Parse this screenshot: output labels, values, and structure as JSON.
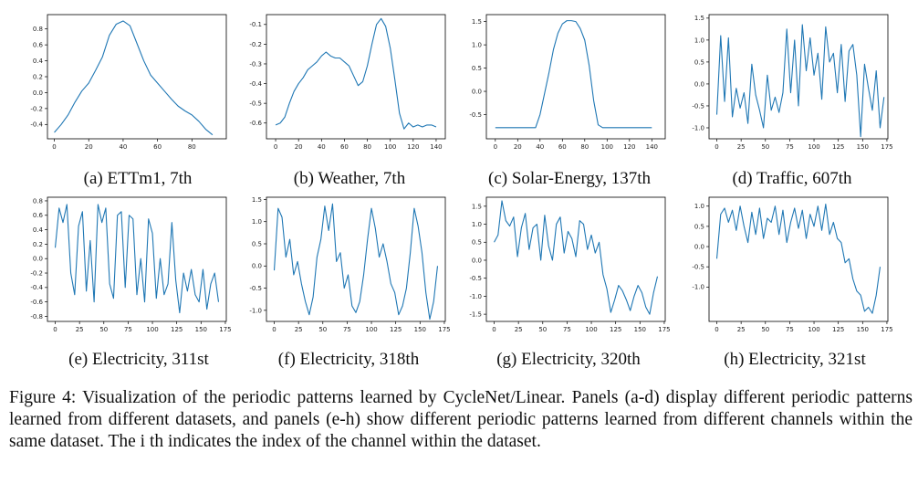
{
  "figure_caption": "Figure 4: Visualization of the periodic patterns learned by CycleNet/Linear. Panels (a-d) display different periodic patterns learned from different datasets, and panels (e-h) show different periodic patterns learned from different channels within the same dataset. The i th indicates the index of the channel within the dataset.",
  "colors": {
    "line": "#1f77b4",
    "axes": "#000000"
  },
  "chart_data": [
    {
      "type": "line",
      "id": "a",
      "caption": "(a) ETTm1, 7th",
      "x_start": 0,
      "x_step": 4,
      "xlim": [
        -4,
        100
      ],
      "ylim": [
        -0.58,
        0.98
      ],
      "xticks": [
        0,
        20,
        40,
        60,
        80
      ],
      "yticks": [
        -0.4,
        -0.2,
        0.0,
        0.2,
        0.4,
        0.6,
        0.8
      ],
      "xtick_labels": [
        "0",
        "20",
        "40",
        "60",
        "80"
      ],
      "ytick_labels": [
        "-0.4",
        "-0.2",
        "0.0",
        "0.2",
        "0.4",
        "0.6",
        "0.8"
      ],
      "series": [
        {
          "values": [
            -0.5,
            -0.4,
            -0.28,
            -0.12,
            0.02,
            0.12,
            0.28,
            0.45,
            0.72,
            0.86,
            0.9,
            0.84,
            0.62,
            0.4,
            0.22,
            0.12,
            0.02,
            -0.08,
            -0.17,
            -0.23,
            -0.28,
            -0.36,
            -0.46,
            -0.53
          ]
        }
      ]
    },
    {
      "type": "line",
      "id": "b",
      "caption": "(b) Weather, 7th",
      "x_start": 0,
      "x_step": 4,
      "xlim": [
        -8,
        148
      ],
      "ylim": [
        -0.68,
        -0.05
      ],
      "xticks": [
        0,
        20,
        40,
        60,
        80,
        100,
        120,
        140
      ],
      "yticks": [
        -0.6,
        -0.5,
        -0.4,
        -0.3,
        -0.2,
        -0.1
      ],
      "xtick_labels": [
        "0",
        "20",
        "40",
        "60",
        "80",
        "100",
        "120",
        "140"
      ],
      "ytick_labels": [
        "-0.6",
        "-0.5",
        "-0.4",
        "-0.3",
        "-0.2",
        "-0.1"
      ],
      "series": [
        {
          "values": [
            -0.61,
            -0.6,
            -0.57,
            -0.5,
            -0.44,
            -0.4,
            -0.37,
            -0.33,
            -0.31,
            -0.29,
            -0.26,
            -0.24,
            -0.26,
            -0.27,
            -0.27,
            -0.29,
            -0.31,
            -0.36,
            -0.41,
            -0.39,
            -0.31,
            -0.2,
            -0.1,
            -0.07,
            -0.11,
            -0.22,
            -0.38,
            -0.55,
            -0.63,
            -0.6,
            -0.62,
            -0.61,
            -0.62,
            -0.61,
            -0.61,
            -0.62
          ]
        }
      ]
    },
    {
      "type": "line",
      "id": "c",
      "caption": "(c) Solar-Energy, 137th",
      "x_start": 0,
      "x_step": 4,
      "xlim": [
        -8,
        152
      ],
      "ylim": [
        -1.02,
        1.65
      ],
      "xticks": [
        0,
        20,
        40,
        60,
        80,
        100,
        120,
        140
      ],
      "yticks": [
        -0.5,
        0.0,
        0.5,
        1.0,
        1.5
      ],
      "xtick_labels": [
        "0",
        "20",
        "40",
        "60",
        "80",
        "100",
        "120",
        "140"
      ],
      "ytick_labels": [
        "-0.5",
        "0.0",
        "0.5",
        "1.0",
        "1.5"
      ],
      "series": [
        {
          "values": [
            -0.78,
            -0.78,
            -0.78,
            -0.78,
            -0.78,
            -0.78,
            -0.78,
            -0.78,
            -0.78,
            -0.78,
            -0.5,
            -0.05,
            0.4,
            0.9,
            1.25,
            1.45,
            1.52,
            1.52,
            1.5,
            1.35,
            1.1,
            0.55,
            -0.2,
            -0.72,
            -0.78,
            -0.78,
            -0.78,
            -0.78,
            -0.78,
            -0.78,
            -0.78,
            -0.78,
            -0.78,
            -0.78,
            -0.78,
            -0.78
          ]
        }
      ]
    },
    {
      "type": "line",
      "id": "d",
      "caption": "(d) Traffic, 607th",
      "x_start": 0,
      "x_step": 4,
      "xlim": [
        -8,
        176
      ],
      "ylim": [
        -1.25,
        1.58
      ],
      "xticks": [
        0,
        25,
        50,
        75,
        100,
        125,
        150,
        175
      ],
      "yticks": [
        -1.0,
        -0.5,
        0.0,
        0.5,
        1.0,
        1.5
      ],
      "xtick_labels": [
        "0",
        "25",
        "50",
        "75",
        "100",
        "125",
        "150",
        "175"
      ],
      "ytick_labels": [
        "-1.0",
        "-0.5",
        "0.0",
        "0.5",
        "1.0",
        "1.5"
      ],
      "series": [
        {
          "values": [
            -0.7,
            1.1,
            -0.4,
            1.05,
            -0.75,
            -0.1,
            -0.55,
            -0.2,
            -0.9,
            0.45,
            -0.25,
            -0.6,
            -1.0,
            0.2,
            -0.6,
            -0.3,
            -0.65,
            -0.2,
            1.25,
            -0.2,
            1.0,
            -0.5,
            1.35,
            0.3,
            1.05,
            0.2,
            0.7,
            -0.35,
            1.3,
            0.5,
            0.7,
            -0.2,
            0.9,
            -0.4,
            0.75,
            0.9,
            0.2,
            -1.2,
            0.45,
            -0.1,
            -0.6,
            0.3,
            -1.0,
            -0.3
          ]
        }
      ]
    },
    {
      "type": "line",
      "id": "e",
      "caption": "(e) Electricity, 311st",
      "x_start": 0,
      "x_step": 4,
      "xlim": [
        -8,
        176
      ],
      "ylim": [
        -0.87,
        0.85
      ],
      "xticks": [
        0,
        25,
        50,
        75,
        100,
        125,
        150,
        175
      ],
      "yticks": [
        -0.8,
        -0.6,
        -0.4,
        -0.2,
        0.0,
        0.2,
        0.4,
        0.6,
        0.8
      ],
      "xtick_labels": [
        "0",
        "25",
        "50",
        "75",
        "100",
        "125",
        "150",
        "175"
      ],
      "ytick_labels": [
        "-0.8",
        "-0.6",
        "-0.4",
        "-0.2",
        "0.0",
        "0.2",
        "0.4",
        "0.6",
        "0.8"
      ],
      "series": [
        {
          "values": [
            0.15,
            0.7,
            0.5,
            0.75,
            -0.2,
            -0.5,
            0.45,
            0.65,
            -0.45,
            0.25,
            -0.6,
            0.75,
            0.5,
            0.7,
            -0.35,
            -0.55,
            0.6,
            0.65,
            -0.4,
            0.6,
            0.55,
            -0.5,
            0.0,
            -0.6,
            0.55,
            0.35,
            -0.55,
            0.0,
            -0.5,
            -0.35,
            0.5,
            -0.3,
            -0.75,
            -0.2,
            -0.45,
            -0.15,
            -0.5,
            -0.6,
            -0.15,
            -0.7,
            -0.35,
            -0.2,
            -0.6
          ]
        }
      ]
    },
    {
      "type": "line",
      "id": "f",
      "caption": "(f) Electricity, 318th",
      "x_start": 0,
      "x_step": 4,
      "xlim": [
        -8,
        176
      ],
      "ylim": [
        -1.25,
        1.55
      ],
      "xticks": [
        0,
        25,
        50,
        75,
        100,
        125,
        150,
        175
      ],
      "yticks": [
        -1.0,
        -0.5,
        0.0,
        0.5,
        1.0,
        1.5
      ],
      "xtick_labels": [
        "0",
        "25",
        "50",
        "75",
        "100",
        "125",
        "150",
        "175"
      ],
      "ytick_labels": [
        "-1.0",
        "-0.5",
        "0.0",
        "0.5",
        "1.0",
        "1.5"
      ],
      "series": [
        {
          "values": [
            -0.1,
            1.3,
            1.1,
            0.2,
            0.6,
            -0.2,
            0.1,
            -0.4,
            -0.8,
            -1.1,
            -0.7,
            0.2,
            0.6,
            1.35,
            0.8,
            1.4,
            0.1,
            0.3,
            -0.5,
            -0.2,
            -0.9,
            -1.05,
            -0.8,
            -0.2,
            0.6,
            1.3,
            0.85,
            0.2,
            0.5,
            0.1,
            -0.4,
            -0.6,
            -1.1,
            -0.9,
            -0.5,
            0.3,
            1.3,
            0.9,
            0.3,
            -0.6,
            -1.2,
            -0.8,
            0.0
          ]
        }
      ]
    },
    {
      "type": "line",
      "id": "g",
      "caption": "(g) Electricity, 320th",
      "x_start": 0,
      "x_step": 4,
      "xlim": [
        -8,
        176
      ],
      "ylim": [
        -1.7,
        1.75
      ],
      "xticks": [
        0,
        25,
        50,
        75,
        100,
        125,
        150,
        175
      ],
      "yticks": [
        -1.5,
        -1.0,
        -0.5,
        0.0,
        0.5,
        1.0,
        1.5
      ],
      "xtick_labels": [
        "0",
        "25",
        "50",
        "75",
        "100",
        "125",
        "150",
        "175"
      ],
      "ytick_labels": [
        "-1.5",
        "-1.0",
        "-0.5",
        "0.0",
        "0.5",
        "1.0",
        "1.5"
      ],
      "series": [
        {
          "values": [
            0.5,
            0.7,
            1.65,
            1.1,
            0.95,
            1.2,
            0.1,
            0.9,
            1.3,
            0.3,
            0.9,
            1.0,
            0.0,
            1.25,
            0.4,
            0.0,
            1.0,
            1.2,
            0.2,
            0.8,
            0.6,
            0.1,
            1.1,
            1.0,
            0.3,
            0.7,
            0.2,
            0.5,
            -0.4,
            -0.8,
            -1.45,
            -1.1,
            -0.7,
            -0.85,
            -1.1,
            -1.4,
            -1.0,
            -0.7,
            -0.9,
            -1.3,
            -1.5,
            -0.9,
            -0.45
          ]
        }
      ]
    },
    {
      "type": "line",
      "id": "h",
      "caption": "(h) Electricity, 321st",
      "x_start": 0,
      "x_step": 4,
      "xlim": [
        -8,
        176
      ],
      "ylim": [
        -1.85,
        1.22
      ],
      "xticks": [
        0,
        25,
        50,
        75,
        100,
        125,
        150,
        175
      ],
      "yticks": [
        -1.0,
        -0.5,
        0.0,
        0.5,
        1.0
      ],
      "xtick_labels": [
        "0",
        "25",
        "50",
        "75",
        "100",
        "125",
        "150",
        "175"
      ],
      "ytick_labels": [
        "-1.0",
        "-0.5",
        "0.0",
        "0.5",
        "1.0"
      ],
      "series": [
        {
          "values": [
            -0.3,
            0.8,
            0.95,
            0.6,
            0.9,
            0.4,
            1.0,
            0.5,
            0.1,
            0.85,
            0.3,
            0.95,
            0.2,
            0.7,
            0.6,
            1.0,
            0.3,
            0.9,
            0.1,
            0.6,
            0.95,
            0.45,
            0.9,
            0.2,
            0.8,
            0.5,
            1.0,
            0.4,
            1.05,
            0.3,
            0.6,
            0.2,
            0.1,
            -0.4,
            -0.3,
            -0.8,
            -1.1,
            -1.2,
            -1.6,
            -1.5,
            -1.65,
            -1.2,
            -0.5
          ]
        }
      ]
    }
  ]
}
